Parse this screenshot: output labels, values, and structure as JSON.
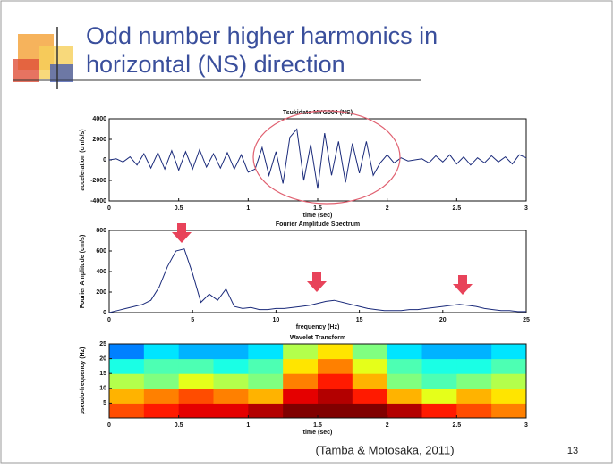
{
  "slide": {
    "title_lines": [
      "Odd number higher harmonics in",
      "horizontal (NS) direction"
    ],
    "citation": "(Tamba & Motosaka, 2011)",
    "page_number": "13"
  },
  "chart_data": [
    {
      "type": "line",
      "title": "Tsukidate MYG004 (NS)",
      "x_label": "time (sec)",
      "y_label": "acceleration (cm/s/s)",
      "color": "#1a2a7a",
      "xlim": [
        0,
        3
      ],
      "xticks": [
        0,
        0.5,
        1,
        1.5,
        2,
        2.5,
        3
      ],
      "ylim": [
        -4000,
        4000
      ],
      "yticks": [
        -4000,
        -2000,
        0,
        2000,
        4000
      ],
      "x": [
        0,
        0.05,
        0.1,
        0.15,
        0.2,
        0.25,
        0.3,
        0.35,
        0.4,
        0.45,
        0.5,
        0.55,
        0.6,
        0.65,
        0.7,
        0.75,
        0.8,
        0.85,
        0.9,
        0.95,
        1,
        1.05,
        1.1,
        1.15,
        1.2,
        1.25,
        1.3,
        1.35,
        1.4,
        1.45,
        1.5,
        1.55,
        1.6,
        1.65,
        1.7,
        1.75,
        1.8,
        1.85,
        1.9,
        1.95,
        2,
        2.05,
        2.1,
        2.15,
        2.2,
        2.25,
        2.3,
        2.35,
        2.4,
        2.45,
        2.5,
        2.55,
        2.6,
        2.65,
        2.7,
        2.75,
        2.8,
        2.85,
        2.9,
        2.95,
        3
      ],
      "values": [
        0,
        100,
        -200,
        300,
        -500,
        600,
        -800,
        700,
        -900,
        900,
        -1000,
        800,
        -900,
        1000,
        -700,
        600,
        -800,
        700,
        -900,
        500,
        -1200,
        -900,
        1200,
        -1500,
        800,
        -2300,
        2200,
        3000,
        -2000,
        1500,
        -2800,
        2600,
        -1500,
        1800,
        -2200,
        1600,
        -1300,
        1800,
        -1500,
        -300,
        500,
        -300,
        200,
        -100,
        0,
        100,
        -300,
        400,
        -200,
        500,
        -400,
        300,
        -500,
        200,
        -300,
        400,
        -200,
        300,
        -400,
        500,
        200
      ]
    },
    {
      "type": "line",
      "title": "Fourier Amplitude Spectrum",
      "x_label": "frequency (Hz)",
      "y_label": "Fourier Amplitude (cm/s)",
      "color": "#1a2a7a",
      "xlim": [
        0,
        25
      ],
      "xticks": [
        0,
        5,
        10,
        15,
        20,
        25
      ],
      "ylim": [
        0,
        800
      ],
      "yticks": [
        0,
        200,
        400,
        600,
        800
      ],
      "x": [
        0,
        0.5,
        1,
        1.5,
        2,
        2.5,
        3,
        3.5,
        4,
        4.5,
        5,
        5.5,
        6,
        6.5,
        7,
        7.5,
        8,
        8.5,
        9,
        9.5,
        10,
        10.5,
        11,
        11.5,
        12,
        12.5,
        13,
        13.5,
        14,
        14.5,
        15,
        15.5,
        16,
        16.5,
        17,
        17.5,
        18,
        18.5,
        19,
        19.5,
        20,
        20.5,
        21,
        21.5,
        22,
        22.5,
        23,
        23.5,
        24,
        24.5,
        25
      ],
      "values": [
        0,
        20,
        40,
        60,
        80,
        120,
        250,
        450,
        600,
        620,
        380,
        100,
        180,
        120,
        230,
        60,
        40,
        50,
        30,
        30,
        40,
        40,
        50,
        60,
        70,
        90,
        110,
        120,
        100,
        80,
        60,
        40,
        30,
        20,
        20,
        20,
        30,
        30,
        40,
        50,
        60,
        70,
        80,
        70,
        60,
        40,
        30,
        20,
        20,
        10,
        10
      ]
    },
    {
      "type": "heatmap",
      "title": "Wavelet Transform",
      "x_label": "time (sec)",
      "y_label": "pseudo-frequency (Hz)",
      "xlim": [
        0,
        3
      ],
      "xticks": [
        0,
        0.5,
        1,
        1.5,
        2,
        2.5,
        3
      ],
      "ylim": [
        0,
        25
      ],
      "yticks": [
        5,
        10,
        15,
        20,
        25
      ],
      "x_bins": [
        0,
        0.25,
        0.5,
        0.75,
        1,
        1.25,
        1.5,
        1.75,
        2,
        2.25,
        2.5,
        2.75,
        3
      ],
      "y_bins": [
        0,
        5,
        10,
        15,
        20,
        25
      ],
      "z": [
        [
          0.8,
          0.85,
          0.9,
          0.9,
          0.95,
          1,
          1,
          1,
          0.95,
          0.85,
          0.8,
          0.75
        ],
        [
          0.7,
          0.75,
          0.8,
          0.75,
          0.7,
          0.9,
          0.95,
          0.85,
          0.7,
          0.6,
          0.7,
          0.65
        ],
        [
          0.55,
          0.5,
          0.6,
          0.55,
          0.5,
          0.75,
          0.85,
          0.7,
          0.5,
          0.45,
          0.5,
          0.55
        ],
        [
          0.4,
          0.45,
          0.45,
          0.4,
          0.45,
          0.65,
          0.75,
          0.6,
          0.45,
          0.4,
          0.4,
          0.45
        ],
        [
          0.25,
          0.35,
          0.3,
          0.3,
          0.35,
          0.55,
          0.65,
          0.5,
          0.35,
          0.3,
          0.3,
          0.35
        ]
      ]
    }
  ]
}
